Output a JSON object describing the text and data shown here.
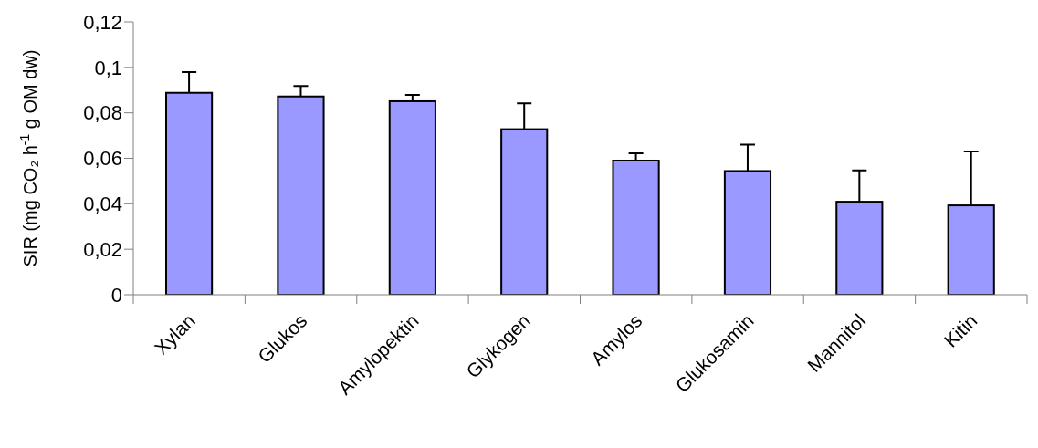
{
  "chart_data": {
    "type": "bar",
    "ylabel": "SIR (mg CO₂ h$^{-1}$ g OM dw)",
    "categories": [
      "Xylan",
      "Glukos",
      "Amylopektin",
      "Glykogen",
      "Amylos",
      "Glukosamin",
      "Mannitol",
      "Kitin"
    ],
    "values": [
      0.0888,
      0.0872,
      0.0851,
      0.0728,
      0.059,
      0.0544,
      0.0409,
      0.0393
    ],
    "errors": [
      [
        0.0888,
        0.0979
      ],
      [
        0.0872,
        0.0918
      ],
      [
        0.0851,
        0.0879
      ],
      [
        0.0728,
        0.0842
      ],
      [
        0.059,
        0.0622
      ],
      [
        0.0544,
        0.066
      ],
      [
        0.0409,
        0.0547
      ],
      [
        0.0393,
        0.063
      ]
    ],
    "color": "#9999ff",
    "ylim": [
      0,
      0.12
    ],
    "yticks": [
      {
        "value": 0,
        "label": "0"
      },
      {
        "value": 0.02,
        "label": "0,02"
      },
      {
        "value": 0.04,
        "label": "0,04"
      },
      {
        "value": 0.06,
        "label": "0,06"
      },
      {
        "value": 0.08,
        "label": "0,08"
      },
      {
        "value": 0.1,
        "label": "0,1"
      },
      {
        "value": 0.12,
        "label": "0,12"
      }
    ],
    "grid": false,
    "legend": false
  }
}
